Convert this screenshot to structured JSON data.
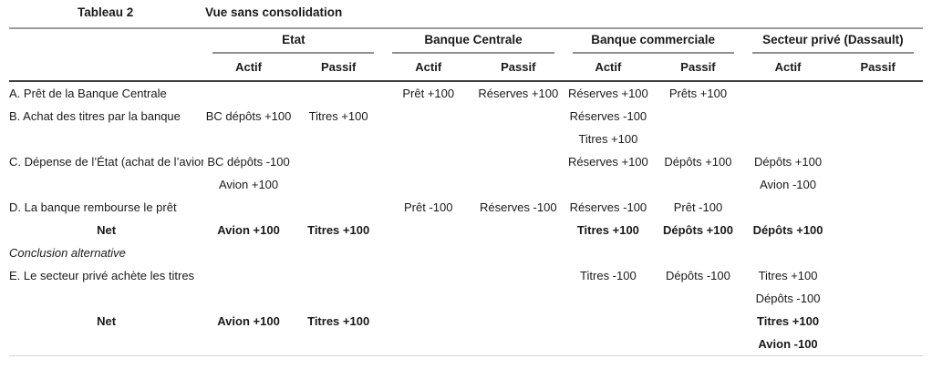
{
  "title": {
    "table_label": "Tableau 2",
    "table_title": "Vue sans consolidation"
  },
  "columns": {
    "groups": [
      {
        "label": "Etat"
      },
      {
        "label": "Banque Centrale"
      },
      {
        "label": "Banque commerciale"
      },
      {
        "label": "Secteur privé (Dassault)"
      }
    ],
    "subheaders": [
      "Actif",
      "Passif"
    ]
  },
  "rows": [
    {
      "style": "normal",
      "cells": [
        "A. Prêt de la Banque Centrale",
        "",
        "",
        "Prêt +100",
        "Réserves +100",
        "Réserves +100",
        "Prêts +100",
        "",
        ""
      ]
    },
    {
      "style": "normal",
      "cells": [
        "B. Achat des titres par la banque",
        "BC dépôts +100",
        "Titres +100",
        "",
        "",
        "Réserves -100",
        "",
        "",
        ""
      ]
    },
    {
      "style": "normal",
      "cells": [
        "",
        "",
        "",
        "",
        "",
        "Titres +100",
        "",
        "",
        ""
      ]
    },
    {
      "style": "normal",
      "cells": [
        "C. Dépense de l’État (achat de l’avion)",
        "BC dépôts -100",
        "",
        "",
        "",
        "Réserves +100",
        "Dépôts +100",
        "Dépôts +100",
        ""
      ]
    },
    {
      "style": "normal",
      "cells": [
        "",
        "Avion +100",
        "",
        "",
        "",
        "",
        "",
        "Avion -100",
        ""
      ]
    },
    {
      "style": "normal",
      "cells": [
        "D. La banque rembourse le prêt",
        "",
        "",
        "Prêt -100",
        "Réserves -100",
        "Réserves -100",
        "Prêt -100",
        "",
        ""
      ]
    },
    {
      "style": "net",
      "cells": [
        "Net",
        "Avion +100",
        "Titres +100",
        "",
        "",
        "Titres +100",
        "Dépôts +100",
        "Dépôts +100",
        ""
      ]
    },
    {
      "style": "sec",
      "cells": [
        "Conclusion alternative",
        "",
        "",
        "",
        "",
        "",
        "",
        "",
        ""
      ]
    },
    {
      "style": "normal",
      "cells": [
        "E. Le secteur privé achète les titres",
        "",
        "",
        "",
        "",
        "Titres -100",
        "Dépôts -100",
        "Titres +100",
        ""
      ]
    },
    {
      "style": "normal",
      "cells": [
        "",
        "",
        "",
        "",
        "",
        "",
        "",
        "Dépôts -100",
        ""
      ]
    },
    {
      "style": "net",
      "cells": [
        "Net",
        "Avion +100",
        "Titres +100",
        "",
        "",
        "",
        "",
        "Titres +100",
        ""
      ]
    },
    {
      "style": "net",
      "cells": [
        "",
        "",
        "",
        "",
        "",
        "",
        "",
        "Avion -100",
        ""
      ]
    }
  ],
  "colors": {
    "top_rule": "#9b9b9b",
    "group_rule": "#8f8f8f",
    "header_rule": "#3f3f3f",
    "bottom_rule": "#d4d4d4",
    "text": "#1a1a1a"
  }
}
